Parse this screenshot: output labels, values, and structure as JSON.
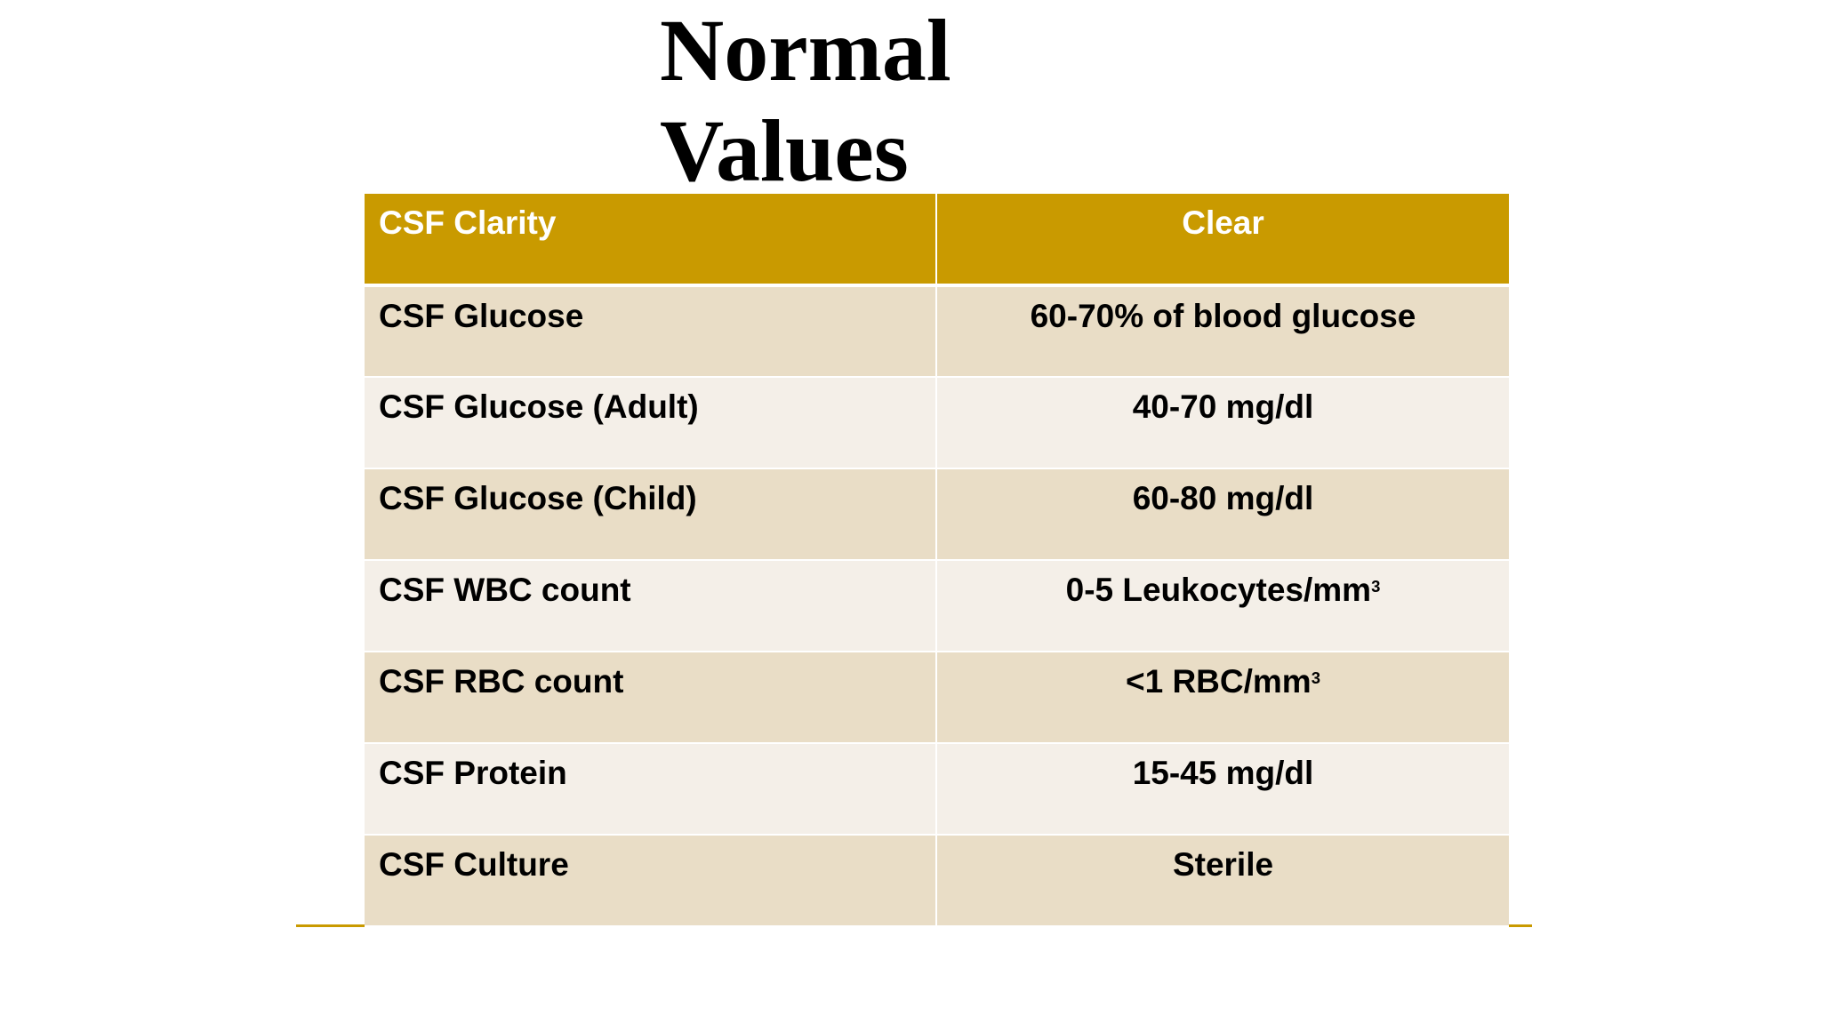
{
  "slide": {
    "title_line1": "Normal",
    "title_line2": "Values"
  },
  "table": {
    "header": {
      "label": "CSF Clarity",
      "value": "Clear"
    },
    "rows": [
      {
        "label": "CSF Glucose",
        "value": "60-70% of blood glucose"
      },
      {
        "label": "CSF Glucose (Adult)",
        "value": "40-70 mg/dl"
      },
      {
        "label": "CSF Glucose (Child)",
        "value": "60-80 mg/dl"
      },
      {
        "label": "CSF WBC count",
        "value": "0-5 Leukocytes/mm",
        "superscript": "3"
      },
      {
        "label": "CSF RBC count",
        "value": "<1 RBC/mm",
        "superscript": "3"
      },
      {
        "label": "CSF Protein",
        "value": "15-45 mg/dl"
      },
      {
        "label": "CSF Culture",
        "value": "Sterile"
      }
    ]
  },
  "colors": {
    "header_bg": "#c99a00",
    "row_odd_bg": "#e9ddc6",
    "row_even_bg": "#f4efe8",
    "accent_rule": "#c99a00"
  }
}
